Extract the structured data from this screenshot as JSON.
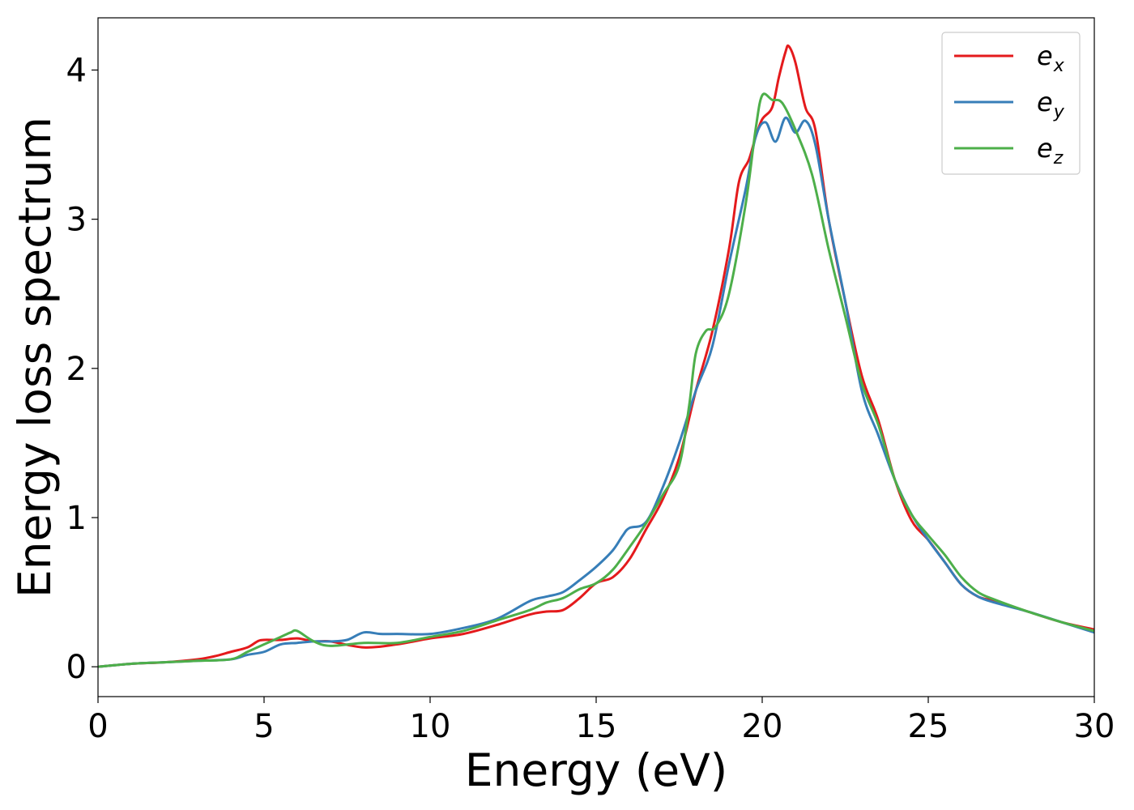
{
  "chart_data": {
    "type": "line",
    "xlabel": "Energy (eV)",
    "ylabel": "Energy loss spectrum",
    "xlim": [
      0,
      30
    ],
    "ylim": [
      -0.2,
      4.35
    ],
    "xticks": [
      0,
      5,
      10,
      15,
      20,
      25,
      30
    ],
    "yticks": [
      0,
      1,
      2,
      3,
      4
    ],
    "grid": false,
    "legend_position": "top-right",
    "series": [
      {
        "name": "e_x",
        "label_main": "e",
        "label_sub": "x",
        "color": "#e41a1c",
        "x": [
          0,
          1,
          2,
          3,
          3.5,
          4,
          4.5,
          4.8,
          5,
          5.5,
          6,
          6.5,
          7,
          8,
          9,
          10,
          11,
          12,
          13,
          13.5,
          14,
          14.5,
          15,
          15.5,
          16,
          16.5,
          17,
          17.5,
          18,
          18.5,
          19,
          19.3,
          19.6,
          19.8,
          20,
          20.3,
          20.5,
          20.7,
          20.8,
          21,
          21.3,
          21.6,
          22,
          22.5,
          23,
          23.5,
          24,
          24.5,
          25,
          25.5,
          26,
          26.5,
          27,
          28,
          29,
          30
        ],
        "y": [
          0,
          0.02,
          0.03,
          0.05,
          0.07,
          0.1,
          0.13,
          0.17,
          0.18,
          0.18,
          0.19,
          0.17,
          0.17,
          0.13,
          0.15,
          0.19,
          0.22,
          0.28,
          0.35,
          0.37,
          0.38,
          0.46,
          0.56,
          0.6,
          0.72,
          0.92,
          1.12,
          1.4,
          1.85,
          2.25,
          2.8,
          3.25,
          3.4,
          3.55,
          3.67,
          3.75,
          3.95,
          4.12,
          4.16,
          4.05,
          3.75,
          3.6,
          3.0,
          2.45,
          1.95,
          1.65,
          1.25,
          0.98,
          0.85,
          0.7,
          0.55,
          0.47,
          0.44,
          0.37,
          0.3,
          0.25
        ]
      },
      {
        "name": "e_y",
        "label_main": "e",
        "label_sub": "y",
        "color": "#377eb8",
        "x": [
          0,
          1,
          2,
          3,
          4,
          4.5,
          5,
          5.5,
          6,
          6.5,
          7,
          7.5,
          8,
          8.5,
          9,
          10,
          11,
          12,
          13,
          13.5,
          14,
          14.5,
          15,
          15.5,
          15.8,
          16,
          16.5,
          17,
          17.5,
          18,
          18.5,
          19,
          19.5,
          19.8,
          20.1,
          20.4,
          20.7,
          21,
          21.3,
          21.6,
          22,
          22.5,
          23,
          23.5,
          24,
          24.5,
          25,
          25.5,
          26,
          26.5,
          27,
          28,
          29,
          30
        ],
        "y": [
          0,
          0.02,
          0.03,
          0.04,
          0.05,
          0.08,
          0.1,
          0.15,
          0.16,
          0.17,
          0.17,
          0.18,
          0.23,
          0.22,
          0.22,
          0.22,
          0.26,
          0.32,
          0.44,
          0.47,
          0.5,
          0.58,
          0.67,
          0.78,
          0.88,
          0.93,
          0.97,
          1.2,
          1.5,
          1.85,
          2.15,
          2.7,
          3.2,
          3.55,
          3.65,
          3.52,
          3.68,
          3.58,
          3.66,
          3.5,
          3.0,
          2.45,
          1.85,
          1.55,
          1.25,
          1.02,
          0.85,
          0.7,
          0.55,
          0.47,
          0.43,
          0.37,
          0.3,
          0.23
        ]
      },
      {
        "name": "e_z",
        "label_main": "e",
        "label_sub": "z",
        "color": "#4daf4a",
        "x": [
          0,
          1,
          2,
          3,
          4,
          4.5,
          5,
          5.5,
          5.8,
          6,
          6.5,
          7,
          8,
          9,
          10,
          11,
          12,
          13,
          13.5,
          14,
          14.5,
          15,
          15.5,
          16,
          16.5,
          17,
          17.5,
          17.8,
          18,
          18.3,
          18.6,
          19,
          19.5,
          19.8,
          20,
          20.3,
          20.6,
          21,
          21.5,
          22,
          22.5,
          23,
          23.5,
          24,
          24.5,
          25,
          25.5,
          26,
          26.5,
          27,
          28,
          29,
          30
        ],
        "y": [
          0,
          0.02,
          0.03,
          0.04,
          0.05,
          0.1,
          0.15,
          0.2,
          0.23,
          0.24,
          0.17,
          0.14,
          0.16,
          0.16,
          0.2,
          0.24,
          0.31,
          0.38,
          0.43,
          0.46,
          0.52,
          0.56,
          0.65,
          0.8,
          0.96,
          1.15,
          1.35,
          1.75,
          2.1,
          2.25,
          2.28,
          2.5,
          3.1,
          3.6,
          3.83,
          3.8,
          3.78,
          3.6,
          3.3,
          2.8,
          2.35,
          1.9,
          1.62,
          1.25,
          1.02,
          0.88,
          0.75,
          0.6,
          0.5,
          0.45,
          0.37,
          0.3,
          0.24
        ]
      }
    ]
  }
}
